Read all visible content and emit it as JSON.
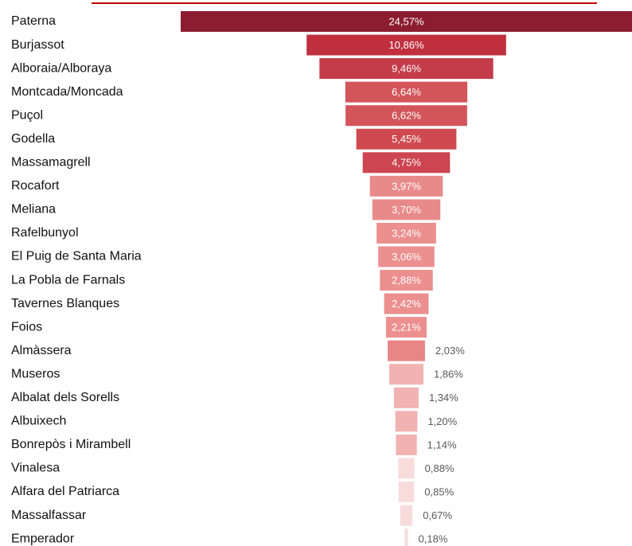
{
  "chart_data": {
    "type": "funnel",
    "categories": [
      "Paterna",
      "Burjassot",
      "Alboraia/Alboraya",
      "Montcada/Moncada",
      "Puçol",
      "Godella",
      "Massamagrell",
      "Rocafort",
      "Meliana",
      "Rafelbunyol",
      "El Puig de Santa Maria",
      "La Pobla de Farnals",
      "Tavernes Blanques",
      "Foios",
      "Almàssera",
      "Museros",
      "Albalat dels Sorells",
      "Albuixech",
      "Bonrepòs i Mirambell",
      "Vinalesa",
      "Alfara del Patriarca",
      "Massalfassar",
      "Emperador"
    ],
    "values": [
      24.57,
      10.86,
      9.46,
      6.64,
      6.62,
      5.45,
      4.75,
      3.97,
      3.7,
      3.24,
      3.06,
      2.88,
      2.42,
      2.21,
      2.03,
      1.86,
      1.34,
      1.2,
      1.14,
      0.88,
      0.85,
      0.67,
      0.18
    ],
    "value_labels": [
      "24,57%",
      "10,86%",
      "9,46%",
      "6,64%",
      "6,62%",
      "5,45%",
      "4,75%",
      "3,97%",
      "3,70%",
      "3,24%",
      "3,06%",
      "2,88%",
      "2,42%",
      "2,21%",
      "2,03%",
      "1,86%",
      "1,34%",
      "1,20%",
      "1,14%",
      "0,88%",
      "0,85%",
      "0,67%",
      "0,18%"
    ],
    "colors": [
      "#8c1d30",
      "#c0303f",
      "#c43b49",
      "#d3555a",
      "#d3555a",
      "#cf4a50",
      "#cc4550",
      "#e98a8a",
      "#e98a8a",
      "#ec8f8f",
      "#ec8f8f",
      "#ec8f8f",
      "#ec8f8f",
      "#ec8f8f",
      "#e88585",
      "#f1b2b2",
      "#f1b2b2",
      "#f1b2b2",
      "#f1b2b2",
      "#f8dcdc",
      "#f8dcdc",
      "#f8dcdc",
      "#f8dcdc"
    ]
  }
}
